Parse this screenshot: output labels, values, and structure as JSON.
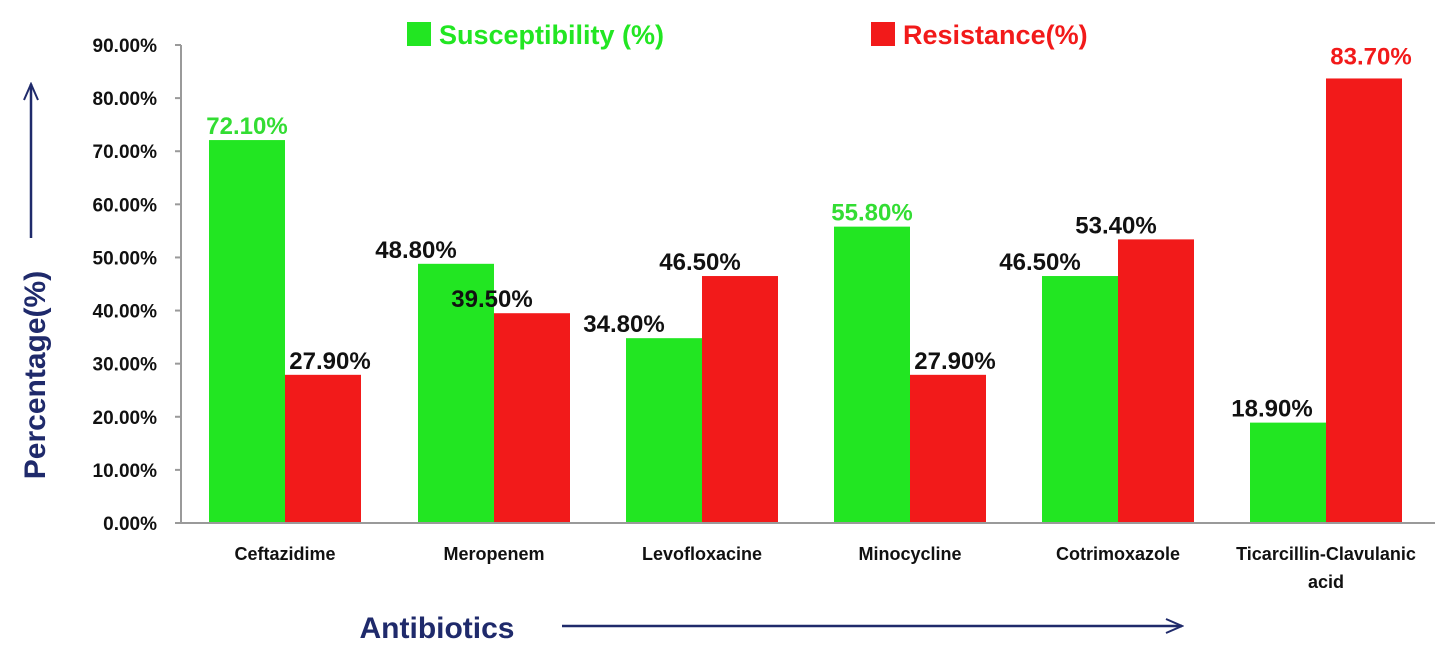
{
  "chart_data": {
    "type": "bar",
    "title": "",
    "xlabel": "Antibiotics",
    "ylabel": "Percentage(%)",
    "ylim": [
      0,
      90
    ],
    "yticks": [
      "0.00%",
      "10.00%",
      "20.00%",
      "30.00%",
      "40.00%",
      "50.00%",
      "60.00%",
      "70.00%",
      "80.00%",
      "90.00%"
    ],
    "grid": false,
    "legend_position": "top",
    "categories": [
      [
        "Ceftazidime"
      ],
      [
        "Meropenem"
      ],
      [
        "Levofloxacine"
      ],
      [
        "Minocycline"
      ],
      [
        "Cotrimoxazole"
      ],
      [
        "Ticarcillin-Clavulanic",
        "acid"
      ]
    ],
    "series": [
      {
        "name": "Susceptibility (%)",
        "color": "#22e622",
        "values": [
          72.1,
          48.8,
          34.8,
          55.8,
          46.5,
          18.9
        ],
        "labels": [
          "72.10%",
          "48.80%",
          "34.80%",
          "55.80%",
          "46.50%",
          "18.90%"
        ],
        "label_colors": [
          "#33dd33",
          "#111111",
          "#111111",
          "#33dd33",
          "#111111",
          "#111111"
        ]
      },
      {
        "name": "Resistance(%)",
        "color": "#f21a1a",
        "values": [
          27.9,
          39.5,
          46.5,
          27.9,
          53.4,
          83.7
        ],
        "labels": [
          "27.90%",
          "39.50%",
          "46.50%",
          "27.90%",
          "53.40%",
          "83.70%"
        ],
        "label_colors": [
          "#111111",
          "#111111",
          "#111111",
          "#111111",
          "#111111",
          "#f21a1a"
        ]
      }
    ],
    "axis_color": "#1f2a6b"
  }
}
